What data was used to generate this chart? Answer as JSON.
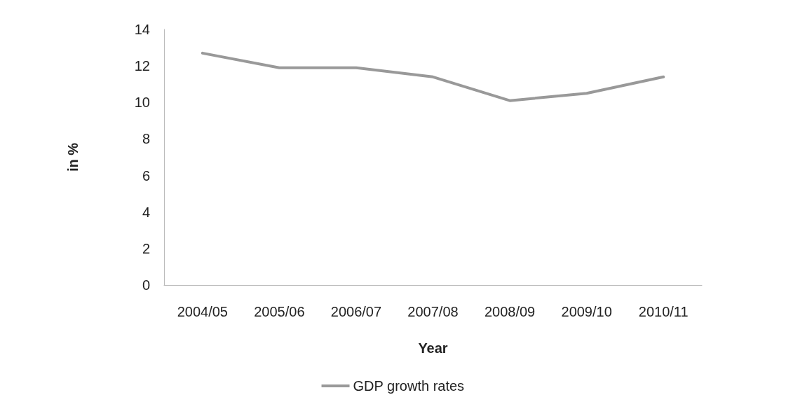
{
  "chart_data": {
    "type": "line",
    "xlabel": "Year",
    "ylabel": "in %",
    "categories": [
      "2004/05",
      "2005/06",
      "2006/07",
      "2007/08",
      "2008/09",
      "2009/10",
      "2010/11"
    ],
    "series": [
      {
        "name": "GDP growth rates",
        "color": "#999999",
        "values": [
          12.7,
          11.9,
          11.9,
          11.4,
          10.1,
          10.5,
          11.4
        ]
      }
    ],
    "ylim": [
      0,
      14
    ],
    "yticks": [
      0,
      2,
      4,
      6,
      8,
      10,
      12,
      14
    ],
    "grid": false,
    "legend": "bottom",
    "marker": "none",
    "line_style": "solid"
  }
}
